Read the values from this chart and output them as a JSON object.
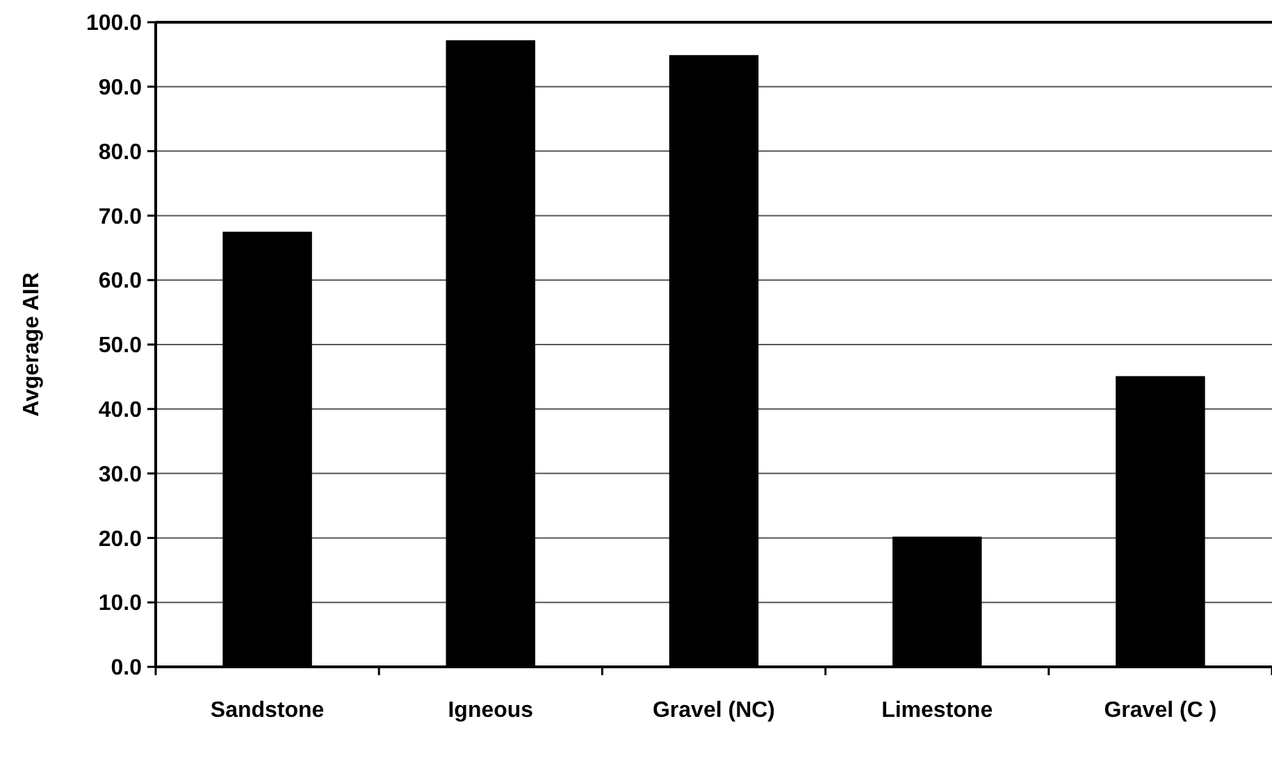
{
  "chart_data": {
    "type": "bar",
    "ylabel": "Avgerage AIR",
    "categories": [
      "Sandstone",
      "Igneous",
      "Gravel (NC)",
      "Limestone",
      "Gravel (C )"
    ],
    "values": [
      67.5,
      97.2,
      94.9,
      20.2,
      45.1
    ],
    "color": "#000000",
    "ylim": [
      0,
      100
    ],
    "yticks": [
      {
        "value": 0,
        "label": "0.0"
      },
      {
        "value": 10,
        "label": "10.0"
      },
      {
        "value": 20,
        "label": "20.0"
      },
      {
        "value": 30,
        "label": "30.0"
      },
      {
        "value": 40,
        "label": "40.0"
      },
      {
        "value": 50,
        "label": "50.0"
      },
      {
        "value": 60,
        "label": "60.0"
      },
      {
        "value": 70,
        "label": "70.0"
      },
      {
        "value": 80,
        "label": "80.0"
      },
      {
        "value": 90,
        "label": "90.0"
      },
      {
        "value": 100,
        "label": "100.0"
      }
    ],
    "grid": "y"
  }
}
